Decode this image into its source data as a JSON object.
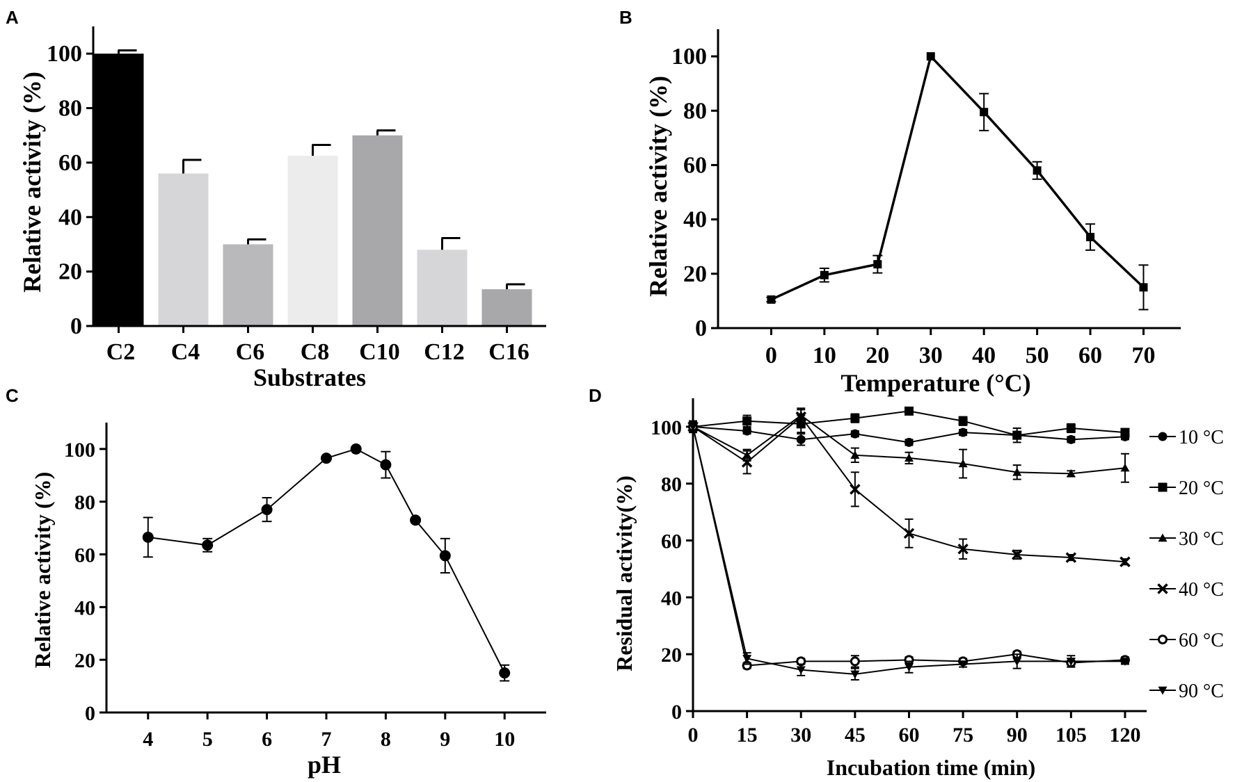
{
  "chart_data": [
    {
      "panel": "A",
      "type": "bar",
      "title": "",
      "xlabel": "Substrates",
      "ylabel": "Relative activity (%)",
      "ylim": [
        0,
        110
      ],
      "yticks": [
        "0",
        "20",
        "40",
        "60",
        "80",
        "100"
      ],
      "categories": [
        "C2",
        "C4",
        "C6",
        "C8",
        "C10",
        "C12",
        "C16"
      ],
      "values": [
        100,
        56,
        30,
        62.5,
        70,
        28,
        13.5
      ],
      "errors": [
        1.2,
        5,
        1.8,
        4,
        1.8,
        4.3,
        1.8
      ],
      "colors": [
        "#000000",
        "#d6d6d8",
        "#b9b9bb",
        "#ececec",
        "#a8a8aa",
        "#d6d6d8",
        "#a8a8aa"
      ]
    },
    {
      "panel": "B",
      "type": "line",
      "title": "",
      "xlabel": "Temperature (°C)",
      "ylabel": "Relative activity (%)",
      "xlim": [
        -10,
        77
      ],
      "ylim": [
        0,
        110
      ],
      "xticks": [
        "0",
        "10",
        "20",
        "30",
        "40",
        "50",
        "60",
        "70"
      ],
      "yticks": [
        "0",
        "20",
        "40",
        "60",
        "80",
        "100"
      ],
      "x": [
        0,
        10,
        20,
        30,
        40,
        50,
        60,
        70
      ],
      "values": [
        10.5,
        19.5,
        23.5,
        100,
        79.5,
        58,
        33.5,
        15
      ],
      "errors": [
        0.8,
        2.5,
        3.2,
        0,
        6.8,
        3.2,
        4.8,
        8.2
      ],
      "marker": "square"
    },
    {
      "panel": "C",
      "type": "line",
      "title": "",
      "xlabel": "pH",
      "ylabel": "Relative activity (%)",
      "xlim": [
        3.3,
        10.7
      ],
      "ylim": [
        0,
        110
      ],
      "xticks": [
        "4",
        "5",
        "6",
        "7",
        "8",
        "9",
        "10"
      ],
      "yticks": [
        "0",
        "20",
        "40",
        "60",
        "80",
        "100"
      ],
      "x": [
        4,
        5,
        6,
        7,
        7.5,
        8,
        8.5,
        9,
        10
      ],
      "values": [
        66.5,
        63.5,
        77,
        96.5,
        100,
        94,
        73,
        59.5,
        15
      ],
      "errors": [
        7.5,
        2.5,
        4.5,
        0,
        0,
        5,
        0,
        6.5,
        3
      ],
      "marker": "circle"
    },
    {
      "panel": "D",
      "type": "line",
      "title": "",
      "xlabel": "Incubation time (min)",
      "ylabel": "Residual activity(%)",
      "xlim": [
        0,
        126
      ],
      "ylim": [
        0,
        110
      ],
      "xticks": [
        "0",
        "15",
        "30",
        "45",
        "60",
        "75",
        "90",
        "105",
        "120"
      ],
      "yticks": [
        "0",
        "20",
        "40",
        "60",
        "80",
        "100"
      ],
      "x": [
        0,
        15,
        30,
        45,
        60,
        75,
        90,
        105,
        120
      ],
      "series": [
        {
          "name": "10 °C",
          "marker": "circle",
          "values": [
            100,
            98.5,
            95.5,
            97.5,
            94.5,
            98,
            97,
            95.5,
            96.5
          ],
          "errors": [
            1.5,
            1,
            2,
            1,
            1,
            1,
            1,
            1,
            1
          ]
        },
        {
          "name": "20 °C",
          "marker": "square",
          "values": [
            100,
            102,
            101,
            103,
            105.5,
            102,
            97,
            99.5,
            98
          ],
          "errors": [
            2,
            2,
            3,
            1.5,
            1,
            1.5,
            2.5,
            1.5,
            1
          ]
        },
        {
          "name": "30 °C",
          "marker": "triangle",
          "values": [
            100,
            90,
            104,
            90,
            89,
            87,
            84,
            83.5,
            85.5
          ],
          "errors": [
            2,
            2,
            2,
            2.5,
            2,
            5,
            2.5,
            1,
            5
          ]
        },
        {
          "name": "40 °C",
          "marker": "x",
          "values": [
            100,
            87.5,
            103.5,
            78,
            62.5,
            57,
            55,
            54,
            52.5
          ],
          "errors": [
            2,
            4,
            3,
            6,
            5,
            3.5,
            1.5,
            1,
            1
          ]
        },
        {
          "name": "60 °C",
          "marker": "open-circle",
          "values": [
            100,
            16,
            17.5,
            17.5,
            18,
            17.5,
            20,
            17,
            18
          ],
          "errors": [
            1.5,
            1,
            1,
            2,
            1,
            1,
            1,
            1.5,
            1
          ]
        },
        {
          "name": "90 °C",
          "marker": "triangle-down",
          "values": [
            100,
            18.5,
            14.5,
            13,
            15.5,
            16.5,
            17.5,
            17.5,
            17.5
          ],
          "errors": [
            1.5,
            2,
            2,
            2,
            2,
            1,
            2.5,
            2,
            1
          ]
        }
      ]
    }
  ]
}
